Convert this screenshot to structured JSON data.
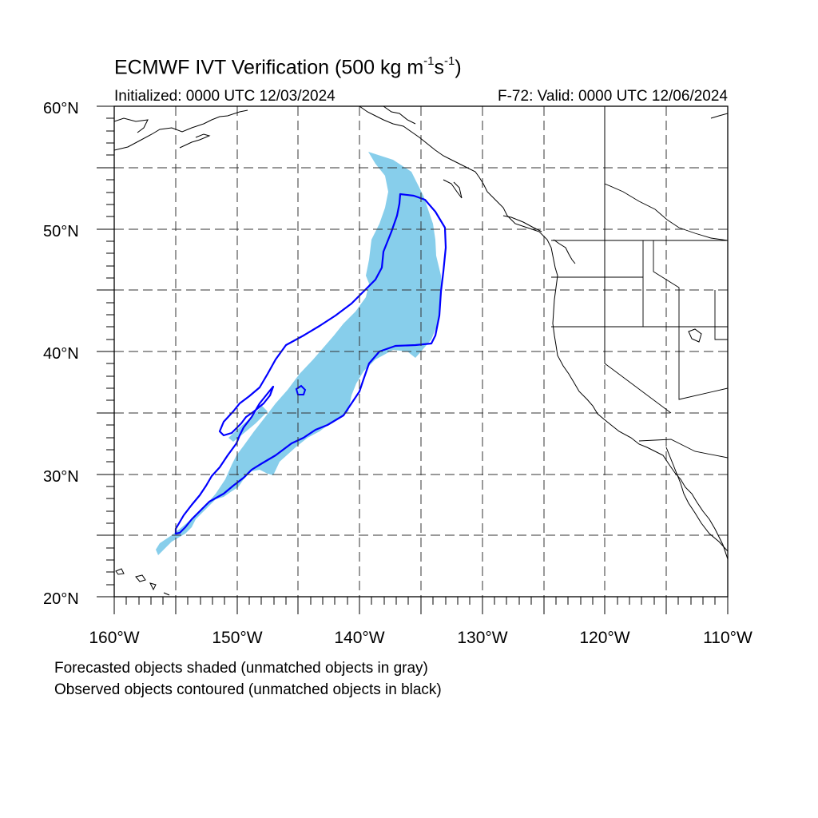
{
  "title": {
    "main": "ECMWF IVT Verification (500 kg m",
    "exp1": "-1",
    "mid": "s",
    "exp2": "-1",
    "end": ")"
  },
  "subtitle": {
    "initialized": "Initialized: 0000 UTC 12/03/2024",
    "valid": "F-72: Valid: 0000 UTC 12/06/2024"
  },
  "map": {
    "lon_range": [
      -160,
      -110
    ],
    "lat_range": [
      20,
      60
    ],
    "lat_labels": [
      "20°N",
      "30°N",
      "40°N",
      "50°N",
      "60°N"
    ],
    "lon_labels": [
      "160°W",
      "150°W",
      "140°W",
      "130°W",
      "120°W",
      "110°W"
    ],
    "grid": "dashed every 5°",
    "forecast_fill_color": "#87ceeb",
    "observed_contour_color": "#0000ff"
  },
  "notes": {
    "line1": "Forecasted objects shaded (unmatched objects in gray)",
    "line2": "Observed objects contoured (unmatched objects in black)"
  }
}
